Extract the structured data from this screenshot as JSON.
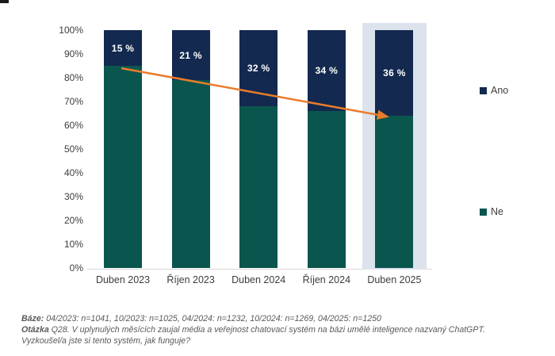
{
  "chart_data": {
    "type": "bar",
    "stacked": true,
    "categories": [
      "Duben 2023",
      "Říjen 2023",
      "Duben 2024",
      "Říjen 2024",
      "Duben 2025"
    ],
    "series": [
      {
        "name": "Ano",
        "color": "#13294F",
        "values": [
          15,
          21,
          32,
          34,
          36
        ],
        "data_labels": [
          "15 %",
          "21 %",
          "32 %",
          "34 %",
          "36 %"
        ],
        "data_label_color": "#FFFFFF"
      },
      {
        "name": "Ne",
        "color": "#0A564E",
        "values": [
          85,
          79,
          68,
          66,
          64
        ]
      }
    ],
    "y_ticks": [
      "100%",
      "90%",
      "80%",
      "70%",
      "60%",
      "50%",
      "40%",
      "30%",
      "20%",
      "10%",
      "0%"
    ],
    "ylim": [
      0,
      100
    ],
    "grid": false,
    "legend_position": "right",
    "highlighted_category": "Duben 2025",
    "highlight_color": "#DCE3ED",
    "trend_arrow": {
      "color": "#EA7C2B",
      "from_category": "Duben 2023",
      "from_percent": 85,
      "to_category": "Duben 2025",
      "to_percent": 64
    }
  },
  "legend": {
    "items": [
      {
        "label": "Ano",
        "color": "#13294F"
      },
      {
        "label": "Ne",
        "color": "#0A564E"
      }
    ]
  },
  "footer": {
    "base_label": "Báze:",
    "base_text": " 04/2023: n=1041, 10/2023: n=1025, 04/2024: n=1232, 10/2024: n=1269, 04/2025: n=1250",
    "question_label": "Otázka",
    "question_text": " Q28. V uplynulých měsících zaujal média a veřejnost chatovací systém na bázi umělé inteligence nazvaný ChatGPT.",
    "question_text2": "Vyzkoušel/a jste si tento systém, jak funguje?"
  }
}
